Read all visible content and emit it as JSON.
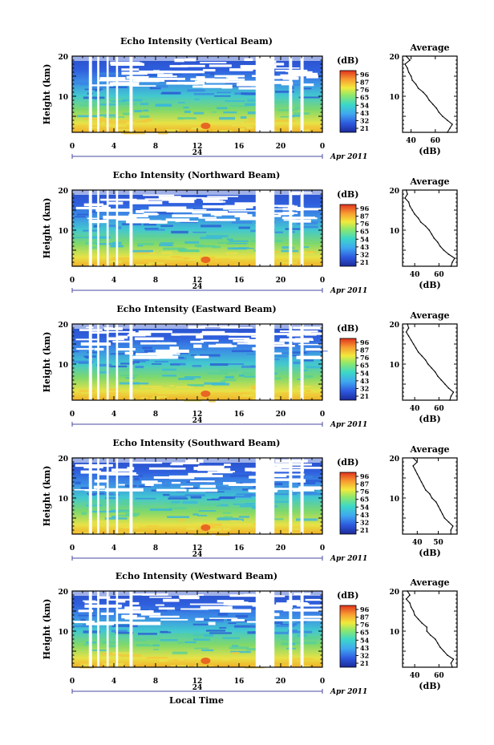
{
  "footer": {
    "xlabel": "Local Time"
  },
  "chart_data": [
    {
      "type": "heatmap",
      "title": "Echo Intensity (Vertical Beam)",
      "ylabel": "Height (km)",
      "x_ticks": [
        "0",
        "4",
        "8",
        "12",
        "16",
        "20",
        "0"
      ],
      "date_label": "24",
      "month_label": "Apr 2011",
      "ylim": [
        1,
        20
      ],
      "y_ticks": [
        "10",
        "20"
      ],
      "xlim": [
        0,
        24
      ],
      "data_gaps": [
        [
          1.6,
          1.9
        ],
        [
          2.4,
          2.6
        ],
        [
          3.3,
          3.5
        ],
        [
          4.2,
          4.4
        ],
        [
          5.5,
          5.8
        ],
        [
          17.6,
          19.4
        ],
        [
          20.8,
          21.1
        ],
        [
          21.9,
          22.2
        ]
      ],
      "colorbar": {
        "unit": "(dB)",
        "ticks": [
          "96",
          "87",
          "76",
          "65",
          "54",
          "43",
          "32",
          "21"
        ],
        "range": [
          21,
          96
        ]
      },
      "profile": {
        "title": "Average",
        "xlabel": "(dB)",
        "x_ticks": [
          "40",
          "60"
        ],
        "xlim": [
          33,
          78
        ],
        "y_ticks": [
          "10",
          "20"
        ],
        "height_km": [
          20,
          19,
          18,
          17,
          16,
          15,
          14,
          13,
          12,
          11,
          10,
          9,
          8,
          7,
          6,
          5,
          4,
          3,
          2,
          1
        ],
        "mean_db": [
          36,
          39,
          35,
          37,
          38,
          40,
          41,
          44,
          46,
          50,
          53,
          55,
          58,
          61,
          63,
          66,
          70,
          74,
          72,
          70
        ]
      }
    },
    {
      "type": "heatmap",
      "title": "Echo Intensity (Northward Beam)",
      "ylabel": "Height (km)",
      "x_ticks": [
        "0",
        "4",
        "8",
        "12",
        "16",
        "20",
        "0"
      ],
      "date_label": "24",
      "month_label": "Apr 2011",
      "ylim": [
        1,
        20
      ],
      "y_ticks": [
        "10",
        "20"
      ],
      "xlim": [
        0,
        24
      ],
      "data_gaps": [
        [
          1.6,
          1.9
        ],
        [
          2.4,
          2.6
        ],
        [
          3.3,
          3.5
        ],
        [
          4.2,
          4.4
        ],
        [
          5.5,
          5.8
        ],
        [
          17.6,
          19.4
        ],
        [
          20.8,
          21.1
        ],
        [
          21.9,
          22.2
        ]
      ],
      "colorbar": {
        "unit": "(dB)",
        "ticks": [
          "96",
          "87",
          "76",
          "65",
          "54",
          "43",
          "32",
          "21"
        ],
        "range": [
          21,
          96
        ]
      },
      "profile": {
        "title": "Average",
        "xlabel": "(dB)",
        "x_ticks": [
          "40",
          "60"
        ],
        "xlim": [
          30,
          75
        ],
        "y_ticks": [
          "10",
          "20"
        ],
        "height_km": [
          20,
          19,
          18,
          17,
          16,
          15,
          14,
          13,
          12,
          11,
          10,
          9,
          8,
          7,
          6,
          5,
          4,
          3,
          2,
          1
        ],
        "mean_db": [
          33,
          34,
          32,
          35,
          36,
          38,
          40,
          43,
          45,
          49,
          52,
          54,
          56,
          59,
          61,
          64,
          68,
          73,
          71,
          70
        ]
      }
    },
    {
      "type": "heatmap",
      "title": "Echo Intensity (Eastward Beam)",
      "ylabel": "Height (km)",
      "x_ticks": [
        "0",
        "4",
        "8",
        "12",
        "16",
        "20",
        "0"
      ],
      "date_label": "24",
      "month_label": "Apr 2011",
      "ylim": [
        1,
        20
      ],
      "y_ticks": [
        "10",
        "20"
      ],
      "xlim": [
        0,
        24
      ],
      "data_gaps": [
        [
          1.6,
          1.9
        ],
        [
          2.4,
          2.6
        ],
        [
          3.3,
          3.5
        ],
        [
          4.2,
          4.4
        ],
        [
          5.5,
          5.8
        ],
        [
          17.6,
          19.4
        ],
        [
          20.8,
          21.1
        ],
        [
          21.9,
          22.2
        ]
      ],
      "colorbar": {
        "unit": "(dB)",
        "ticks": [
          "96",
          "87",
          "76",
          "65",
          "54",
          "43",
          "32",
          "21"
        ],
        "range": [
          21,
          96
        ]
      },
      "profile": {
        "title": "Average",
        "xlabel": "(dB)",
        "x_ticks": [
          "40",
          "60"
        ],
        "xlim": [
          30,
          75
        ],
        "y_ticks": [
          "10",
          "20"
        ],
        "height_km": [
          20,
          19,
          18,
          17,
          16,
          15,
          14,
          13,
          12,
          11,
          10,
          9,
          8,
          7,
          6,
          5,
          4,
          3,
          2,
          1
        ],
        "mean_db": [
          34,
          35,
          33,
          35,
          37,
          39,
          41,
          43,
          46,
          49,
          51,
          54,
          57,
          59,
          62,
          65,
          68,
          72,
          70,
          69
        ]
      }
    },
    {
      "type": "heatmap",
      "title": "Echo Intensity (Southward Beam)",
      "ylabel": "Height (km)",
      "x_ticks": [
        "0",
        "4",
        "8",
        "12",
        "16",
        "20",
        "0"
      ],
      "date_label": "24",
      "month_label": "Apr 2011",
      "ylim": [
        1,
        20
      ],
      "y_ticks": [
        "10",
        "20"
      ],
      "xlim": [
        0,
        24
      ],
      "data_gaps": [
        [
          1.6,
          1.9
        ],
        [
          2.4,
          2.6
        ],
        [
          3.3,
          3.5
        ],
        [
          4.2,
          4.4
        ],
        [
          5.5,
          5.8
        ],
        [
          17.6,
          19.4
        ],
        [
          20.8,
          21.1
        ],
        [
          21.9,
          22.2
        ]
      ],
      "colorbar": {
        "unit": "(dB)",
        "ticks": [
          "96",
          "87",
          "76",
          "65",
          "54",
          "43",
          "32",
          "21"
        ],
        "range": [
          21,
          96
        ]
      },
      "profile": {
        "title": "Average",
        "xlabel": "(dB)",
        "x_ticks": [
          "40",
          "50"
        ],
        "xlim": [
          33,
          59
        ],
        "y_ticks": [
          "10",
          "20"
        ],
        "height_km": [
          20,
          19,
          18,
          17,
          16,
          15,
          14,
          13,
          12,
          11,
          10,
          9,
          8,
          7,
          6,
          5,
          4,
          3,
          2,
          1
        ],
        "mean_db": [
          38,
          40,
          38,
          39,
          40,
          41,
          42,
          43,
          44,
          46,
          47,
          49,
          50,
          51,
          52,
          53,
          55,
          57,
          56,
          56
        ]
      }
    },
    {
      "type": "heatmap",
      "title": "Echo Intensity (Westward Beam)",
      "ylabel": "Height (km)",
      "x_ticks": [
        "0",
        "4",
        "8",
        "12",
        "16",
        "20",
        "0"
      ],
      "date_label": "24",
      "month_label": "Apr 2011",
      "ylim": [
        1,
        20
      ],
      "y_ticks": [
        "10",
        "20"
      ],
      "xlim": [
        0,
        24
      ],
      "data_gaps": [
        [
          1.6,
          1.9
        ],
        [
          2.4,
          2.6
        ],
        [
          3.3,
          3.5
        ],
        [
          4.2,
          4.4
        ],
        [
          5.5,
          5.8
        ],
        [
          17.6,
          19.4
        ],
        [
          20.8,
          21.1
        ],
        [
          21.9,
          22.2
        ]
      ],
      "colorbar": {
        "unit": "(dB)",
        "ticks": [
          "96",
          "87",
          "76",
          "65",
          "54",
          "43",
          "32",
          "21"
        ],
        "range": [
          21,
          96
        ]
      },
      "profile": {
        "title": "Average",
        "xlabel": "(dB)",
        "x_ticks": [
          "40",
          "60"
        ],
        "xlim": [
          30,
          75
        ],
        "y_ticks": [
          "10",
          "20"
        ],
        "height_km": [
          20,
          19,
          18,
          17,
          16,
          15,
          14,
          13,
          12,
          11,
          10,
          9,
          8,
          7,
          6,
          5,
          4,
          3,
          2,
          1
        ],
        "mean_db": [
          34,
          36,
          33,
          36,
          37,
          39,
          40,
          43,
          46,
          50,
          50,
          53,
          57,
          59,
          61,
          64,
          67,
          72,
          70,
          71
        ]
      }
    }
  ]
}
